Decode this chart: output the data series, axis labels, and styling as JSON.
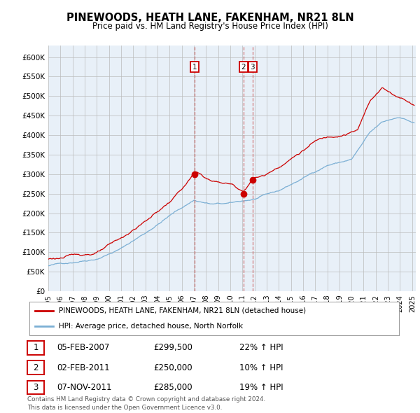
{
  "title": "PINEWOODS, HEATH LANE, FAKENHAM, NR21 8LN",
  "subtitle": "Price paid vs. HM Land Registry's House Price Index (HPI)",
  "ylabel_ticks": [
    "£0",
    "£50K",
    "£100K",
    "£150K",
    "£200K",
    "£250K",
    "£300K",
    "£350K",
    "£400K",
    "£450K",
    "£500K",
    "£550K",
    "£600K"
  ],
  "ytick_values": [
    0,
    50000,
    100000,
    150000,
    200000,
    250000,
    300000,
    350000,
    400000,
    450000,
    500000,
    550000,
    600000
  ],
  "ylim": [
    0,
    630000
  ],
  "background_color": "#e8f0f8",
  "red_color": "#cc0000",
  "blue_color": "#7bafd4",
  "sale_dates": [
    2007.08,
    2011.08,
    2011.83
  ],
  "sale_prices": [
    299500,
    250000,
    285000
  ],
  "vline_color": "#cc6666",
  "marker_numbers": [
    1,
    2,
    3
  ],
  "legend_entries": [
    "PINEWOODS, HEATH LANE, FAKENHAM, NR21 8LN (detached house)",
    "HPI: Average price, detached house, North Norfolk"
  ],
  "table_rows": [
    {
      "num": 1,
      "date": "05-FEB-2007",
      "price": "£299,500",
      "change": "22% ↑ HPI"
    },
    {
      "num": 2,
      "date": "02-FEB-2011",
      "price": "£250,000",
      "change": "10% ↑ HPI"
    },
    {
      "num": 3,
      "date": "07-NOV-2011",
      "price": "£285,000",
      "change": "19% ↑ HPI"
    }
  ],
  "footer": "Contains HM Land Registry data © Crown copyright and database right 2024.\nThis data is licensed under the Open Government Licence v3.0.",
  "xmin": 1995.0,
  "xmax": 2025.3
}
